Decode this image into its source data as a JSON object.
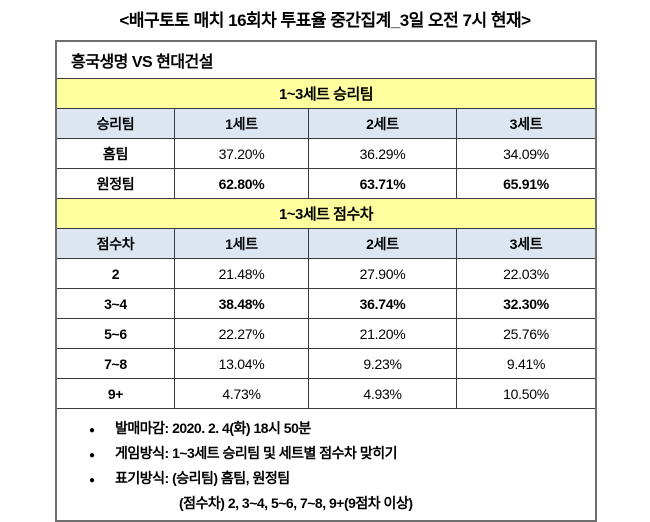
{
  "title": "<배구토토 매치 16회차 투표율 중간집계_3일 오전 7시 현재>",
  "match": {
    "header": "흥국생명 VS 현대건설"
  },
  "colors": {
    "band_yellow": "#FFFFA0",
    "header_blue": "#DCE6F1",
    "border": "#3a3a3a",
    "outer_border": "#6e6e6e"
  },
  "sections": {
    "winner": {
      "band_label": "1~3세트 승리팀",
      "columns": [
        "승리팀",
        "1세트",
        "2세트",
        "3세트"
      ],
      "rows": [
        {
          "label": "홈팀",
          "values": [
            "37.20%",
            "36.29%",
            "34.09%"
          ]
        },
        {
          "label": "원정팀",
          "values": [
            "62.80%",
            "63.71%",
            "65.91%"
          ]
        }
      ]
    },
    "score": {
      "band_label": "1~3세트 점수차",
      "columns": [
        "점수차",
        "1세트",
        "2세트",
        "3세트"
      ],
      "rows": [
        {
          "label": "2",
          "values": [
            "21.48%",
            "27.90%",
            "22.03%"
          ]
        },
        {
          "label": "3~4",
          "values": [
            "38.48%",
            "36.74%",
            "32.30%"
          ]
        },
        {
          "label": "5~6",
          "values": [
            "22.27%",
            "21.20%",
            "25.76%"
          ]
        },
        {
          "label": "7~8",
          "values": [
            "13.04%",
            "9.23%",
            "9.41%"
          ]
        },
        {
          "label": "9+",
          "values": [
            "4.73%",
            "4.93%",
            "10.50%"
          ]
        }
      ]
    }
  },
  "notes": {
    "bullet": "●",
    "items": [
      "발매마감: 2020. 2. 4(화) 18시 50분",
      "게임방식: 1~3세트 승리팀 및 세트별 점수차 맞히기",
      "표기방식: (승리팀) 홈팀, 원정팀"
    ],
    "continuation": "(점수차) 2, 3~4, 5~6, 7~8, 9+(9점차 이상)"
  },
  "chart_data": [
    {
      "type": "table",
      "title": "1~3세트 승리팀",
      "columns": [
        "승리팀",
        "1세트",
        "2세트",
        "3세트"
      ],
      "rows": [
        [
          "홈팀",
          37.2,
          36.29,
          34.09
        ],
        [
          "원정팀",
          62.8,
          63.71,
          65.91
        ]
      ],
      "unit": "%"
    },
    {
      "type": "table",
      "title": "1~3세트 점수차",
      "columns": [
        "점수차",
        "1세트",
        "2세트",
        "3세트"
      ],
      "rows": [
        [
          "2",
          21.48,
          27.9,
          22.03
        ],
        [
          "3~4",
          38.48,
          36.74,
          32.3
        ],
        [
          "5~6",
          22.27,
          21.2,
          25.76
        ],
        [
          "7~8",
          13.04,
          9.23,
          9.41
        ],
        [
          "9+",
          4.73,
          4.93,
          10.5
        ]
      ],
      "unit": "%"
    }
  ]
}
